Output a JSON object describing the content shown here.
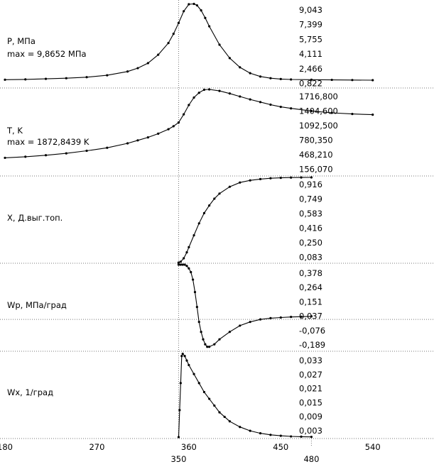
{
  "chart_data": {
    "type": "line",
    "x_ticks": [
      {
        "label": "180",
        "value": 180,
        "row": "upper"
      },
      {
        "label": "270",
        "value": 270,
        "row": "upper"
      },
      {
        "label": "350",
        "value": 350,
        "row": "lower"
      },
      {
        "label": "360",
        "value": 360,
        "row": "upper"
      },
      {
        "label": "450",
        "value": 450,
        "row": "upper"
      },
      {
        "label": "480",
        "value": 480,
        "row": "lower"
      },
      {
        "label": "540",
        "value": 540,
        "row": "upper"
      }
    ],
    "xlim": [
      180,
      600
    ],
    "panels": [
      {
        "id": "pressure",
        "label": "P, МПа",
        "label2": "max = 9,8652 МПа",
        "yticks": [
          "9,043",
          "7,399",
          "5,755",
          "4,111",
          "2,466",
          "0,822"
        ],
        "ylim": [
          0.0,
          10.0
        ],
        "series": {
          "x": [
            180,
            200,
            220,
            240,
            260,
            280,
            300,
            310,
            320,
            330,
            340,
            345,
            350,
            355,
            360,
            365,
            368,
            372,
            376,
            380,
            390,
            400,
            410,
            420,
            430,
            440,
            450,
            460,
            480,
            500,
            520,
            540
          ],
          "y": [
            0.82,
            0.86,
            0.92,
            1.0,
            1.12,
            1.35,
            1.8,
            2.2,
            2.8,
            3.8,
            5.2,
            6.3,
            7.6,
            9.0,
            9.83,
            9.87,
            9.7,
            9.1,
            8.2,
            7.2,
            5.0,
            3.4,
            2.3,
            1.6,
            1.2,
            1.0,
            0.9,
            0.85,
            0.82,
            0.8,
            0.78,
            0.76
          ]
        }
      },
      {
        "id": "temperature",
        "label": "T, K",
        "label2": "max = 1872,8439 K",
        "yticks": [
          "1716,800",
          "1404,600",
          "1092,500",
          "780,350",
          "468,210",
          "156,070"
        ],
        "ylim": [
          0,
          1870
        ],
        "series": {
          "x": [
            180,
            200,
            220,
            240,
            260,
            280,
            300,
            310,
            320,
            330,
            340,
            345,
            350,
            355,
            360,
            365,
            370,
            375,
            380,
            390,
            400,
            410,
            420,
            430,
            440,
            450,
            460,
            480,
            500,
            520,
            540
          ],
          "y": [
            30,
            60,
            100,
            150,
            220,
            300,
            420,
            500,
            580,
            680,
            800,
            880,
            980,
            1200,
            1450,
            1650,
            1780,
            1860,
            1870,
            1830,
            1760,
            1680,
            1600,
            1530,
            1460,
            1400,
            1360,
            1290,
            1240,
            1210,
            1190
          ]
        }
      },
      {
        "id": "burn-fraction",
        "label": "X, Д.выг.топ.",
        "label2": "",
        "yticks": [
          "0,916",
          "0,749",
          "0,583",
          "0,416",
          "0,250",
          "0,083"
        ],
        "ylim": [
          0.0,
          1.0
        ],
        "series": {
          "x": [
            350,
            352,
            355,
            358,
            360,
            365,
            370,
            375,
            380,
            385,
            390,
            400,
            410,
            420,
            430,
            440,
            450,
            460,
            470,
            480
          ],
          "y": [
            0.0,
            0.01,
            0.05,
            0.12,
            0.18,
            0.32,
            0.46,
            0.58,
            0.67,
            0.75,
            0.81,
            0.89,
            0.94,
            0.965,
            0.98,
            0.99,
            0.995,
            0.998,
            0.999,
            1.0
          ]
        }
      },
      {
        "id": "pressure-rate",
        "label": "Wp, МПа/град",
        "label2": "",
        "yticks": [
          "0,378",
          "0,264",
          "0,151",
          "0,037",
          "-0,076",
          "-0,189"
        ],
        "ylim": [
          -0.25,
          0.44
        ],
        "series": {
          "x": [
            350,
            352,
            354,
            356,
            358,
            360,
            362,
            364,
            366,
            368,
            370,
            372,
            374,
            376,
            378,
            380,
            385,
            390,
            400,
            410,
            420,
            430,
            440,
            450,
            460,
            470,
            480
          ],
          "y": [
            0.44,
            0.44,
            0.44,
            0.44,
            0.43,
            0.41,
            0.38,
            0.32,
            0.22,
            0.1,
            -0.02,
            -0.1,
            -0.16,
            -0.2,
            -0.22,
            -0.22,
            -0.2,
            -0.16,
            -0.1,
            -0.05,
            -0.02,
            0.0,
            0.01,
            0.015,
            0.02,
            0.022,
            0.025
          ]
        }
      },
      {
        "id": "burn-rate",
        "label": "Wx, 1/град",
        "label2": "",
        "yticks": [
          "0,033",
          "0,027",
          "0,021",
          "0,015",
          "0,009",
          "0,003"
        ],
        "ylim": [
          0.0,
          0.0375
        ],
        "series": {
          "x": [
            350,
            351,
            352,
            353,
            354,
            356,
            358,
            360,
            365,
            370,
            375,
            380,
            385,
            390,
            395,
            400,
            410,
            420,
            430,
            440,
            450,
            460,
            470,
            480
          ],
          "y": [
            0.0,
            0.012,
            0.024,
            0.036,
            0.037,
            0.036,
            0.034,
            0.032,
            0.028,
            0.024,
            0.02,
            0.017,
            0.014,
            0.011,
            0.009,
            0.007,
            0.0045,
            0.0028,
            0.0017,
            0.001,
            0.0006,
            0.0003,
            0.0002,
            0.0001
          ]
        }
      }
    ]
  }
}
